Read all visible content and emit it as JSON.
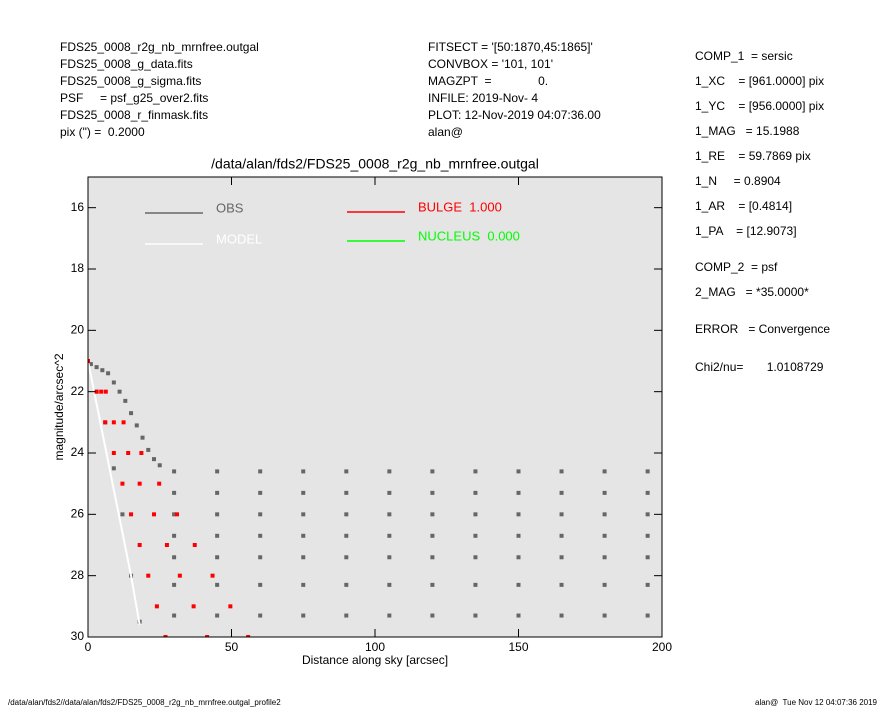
{
  "chart_data": {
    "type": "scatter",
    "header_left": [
      "FDS25_0008_r2g_nb_mrnfree.outgal",
      "FDS25_0008_g_data.fits",
      "FDS25_0008_g_sigma.fits",
      "PSF     = psf_g25_over2.fits",
      "FDS25_0008_r_finmask.fits",
      "pix (\") =  0.2000"
    ],
    "header_mid": [
      "FITSECT = '[50:1870,45:1865]'",
      "CONVBOX = '101, 101'",
      "MAGZPT  =              0.",
      "INFILE: 2019-Nov- 4",
      "PLOT: 12-Nov-2019 04:07:36.00",
      "alan@"
    ],
    "header_right": [
      "COMP_1  = sersic",
      "1_XC    = [961.0000] pix",
      "1_YC    = [956.0000] pix",
      "1_MAG   = 15.1988",
      "1_RE    = 59.7869 pix",
      "1_N     = 0.8904",
      "1_AR    = [0.4814]",
      "1_PA    = [12.9073]",
      "COMP_2  = psf",
      "2_MAG   = *35.0000*",
      "ERROR   = Convergence",
      "Chi2/nu=       1.0108729"
    ],
    "title": "/data/alan/fds2/FDS25_0008_r2g_nb_mrnfree.outgal",
    "xlabel": "Distance along sky [arcsec]",
    "ylabel": "magnitude/arcsec^2",
    "footer_left": "/data/alan/fds2//data/alan/fds2/FDS25_0008_r2g_nb_mrnfree.outgal_profile2",
    "footer_right": "alan@  Tue Nov 12 04:07:36 2019",
    "xlim": [
      0,
      200
    ],
    "xticks": [
      0,
      50,
      100,
      150,
      200
    ],
    "ylim": [
      30,
      15
    ],
    "yticks": [
      16,
      18,
      20,
      22,
      24,
      26,
      28,
      30
    ],
    "background": "#e5e5e5",
    "series": [
      {
        "name": "OBS",
        "color": "#666666",
        "kind": "points",
        "x": [
          1,
          3,
          5,
          7,
          9,
          11,
          13,
          15,
          17,
          19,
          21,
          23,
          25,
          3,
          6,
          9,
          12,
          15,
          18,
          30,
          45,
          60,
          75,
          90,
          105,
          120,
          135,
          150,
          165,
          180,
          195,
          30,
          45,
          60,
          75,
          90,
          105,
          120,
          135,
          150,
          165,
          180,
          195,
          30,
          45,
          60,
          75,
          90,
          105,
          120,
          135,
          150,
          165,
          180,
          195,
          30,
          45,
          60,
          75,
          90,
          105,
          120,
          135,
          150,
          165,
          180,
          195,
          30,
          45,
          60,
          75,
          90,
          105,
          120,
          135,
          150,
          165,
          180,
          195,
          30,
          45,
          60,
          75,
          90,
          105,
          120,
          135,
          150,
          165,
          180,
          195,
          30,
          45,
          60,
          75,
          90,
          105,
          120,
          135,
          150,
          165,
          180,
          195
        ],
        "values": [
          21.1,
          21.2,
          21.3,
          21.4,
          21.7,
          22.0,
          22.3,
          22.7,
          23.1,
          23.5,
          23.9,
          24.2,
          24.4,
          22.0,
          23.0,
          24.5,
          26.0,
          28.0,
          29.5,
          24.6,
          24.6,
          24.6,
          24.6,
          24.6,
          24.6,
          24.6,
          24.6,
          24.6,
          24.6,
          24.6,
          24.6,
          25.3,
          25.3,
          25.3,
          25.3,
          25.3,
          25.3,
          25.3,
          25.3,
          25.3,
          25.3,
          25.3,
          25.3,
          26.0,
          26.0,
          26.0,
          26.0,
          26.0,
          26.0,
          26.0,
          26.0,
          26.0,
          26.0,
          26.0,
          26.0,
          26.7,
          26.7,
          26.7,
          26.7,
          26.7,
          26.7,
          26.7,
          26.7,
          26.7,
          26.7,
          26.7,
          26.7,
          27.4,
          27.4,
          27.4,
          27.4,
          27.4,
          27.4,
          27.4,
          27.4,
          27.4,
          27.4,
          27.4,
          27.4,
          28.3,
          28.3,
          28.3,
          28.3,
          28.3,
          28.3,
          28.3,
          28.3,
          28.3,
          28.3,
          28.3,
          28.3,
          29.3,
          29.3,
          29.3,
          29.3,
          29.3,
          29.3,
          29.3,
          29.3,
          29.3,
          29.3,
          29.3,
          29.3
        ]
      },
      {
        "name": "MODEL",
        "color": "#ffffff",
        "kind": "line",
        "x": [
          0,
          3,
          6,
          9,
          12,
          15,
          18
        ],
        "values": [
          21,
          22.4,
          23.8,
          25.2,
          26.6,
          28,
          29.6
        ]
      },
      {
        "name": "BULGE  1.000",
        "color": "#ff0000",
        "kind": "points",
        "x": [
          0,
          3,
          4.6,
          6.2,
          6,
          9,
          12.4,
          9,
          14,
          18.6,
          12,
          18,
          24.8,
          15,
          23,
          31,
          18,
          27.5,
          37.2,
          21,
          32,
          43.4,
          24,
          36.8,
          49.6,
          27,
          41.5,
          55.8
        ],
        "values": [
          21,
          22,
          22,
          22,
          23,
          23,
          23,
          24,
          24,
          24,
          25,
          25,
          25,
          26,
          26,
          26,
          27,
          27,
          27,
          28,
          28,
          28,
          29,
          29,
          29,
          30,
          30,
          30
        ]
      },
      {
        "name": "NUCLEUS  0.000",
        "color": "#00ff00",
        "kind": "line",
        "x": [],
        "values": []
      }
    ]
  }
}
